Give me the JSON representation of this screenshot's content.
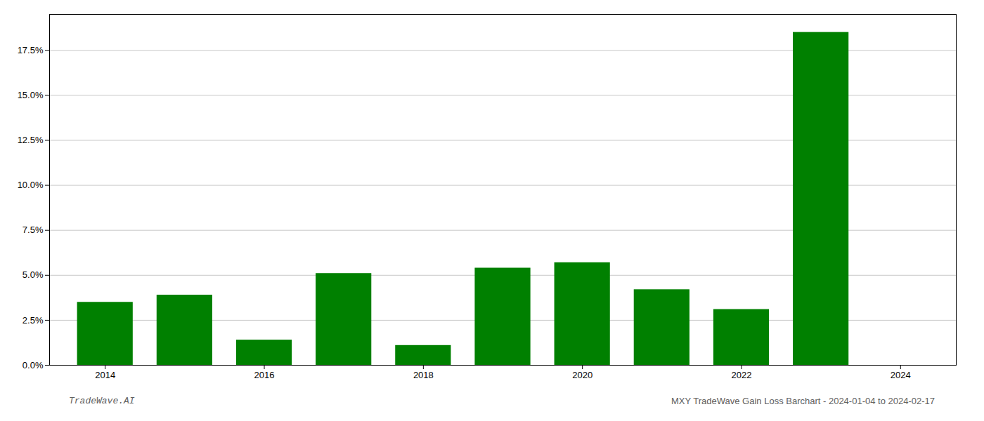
{
  "chart_data": {
    "type": "bar",
    "x": [
      2014,
      2015,
      2016,
      2017,
      2018,
      2019,
      2020,
      2021,
      2022,
      2023
    ],
    "values": [
      0.035,
      0.039,
      0.014,
      0.051,
      0.011,
      0.054,
      0.057,
      0.042,
      0.031,
      0.185
    ],
    "color": "#008000",
    "xlim": [
      2013.3,
      2024.7
    ],
    "xticks": [
      2014,
      2016,
      2018,
      2020,
      2022,
      2024
    ],
    "ylim": [
      0,
      0.195
    ],
    "yticks": [
      {
        "value": 0.0,
        "label": "0.0%"
      },
      {
        "value": 0.025,
        "label": "2.5%"
      },
      {
        "value": 0.05,
        "label": "5.0%"
      },
      {
        "value": 0.075,
        "label": "7.5%"
      },
      {
        "value": 0.1,
        "label": "10.0%"
      },
      {
        "value": 0.125,
        "label": "12.5%"
      },
      {
        "value": 0.15,
        "label": "15.0%"
      },
      {
        "value": 0.175,
        "label": "17.5%"
      }
    ],
    "grid": true,
    "annotations": [
      "TradeWave.AI",
      "MXY TradeWave Gain Loss Barchart - 2024-01-04 to 2024-02-17"
    ]
  }
}
